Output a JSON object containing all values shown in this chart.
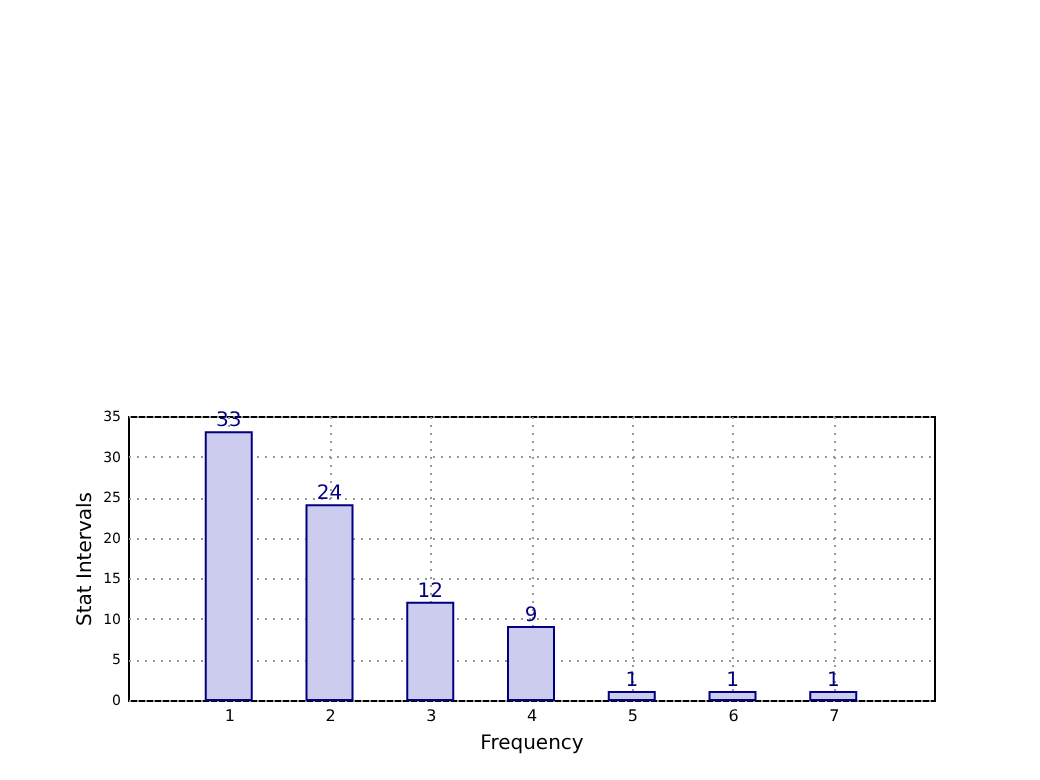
{
  "chart_data": {
    "type": "bar",
    "xlabel": "Frequency",
    "ylabel": "Stat Intervals",
    "x": [
      1,
      2,
      3,
      4,
      5,
      6,
      7
    ],
    "series": [
      {
        "color": "#ccccee",
        "values": [
          33,
          24,
          12,
          9,
          1,
          1,
          1
        ]
      }
    ],
    "xlim": [
      0,
      8
    ],
    "xticks": [
      1,
      2,
      3,
      4,
      5,
      6,
      7
    ],
    "ylim": [
      0,
      35
    ],
    "yticks": [
      0,
      5,
      10,
      15,
      20,
      25,
      30,
      35
    ],
    "grid": true,
    "data_labels": true
  }
}
